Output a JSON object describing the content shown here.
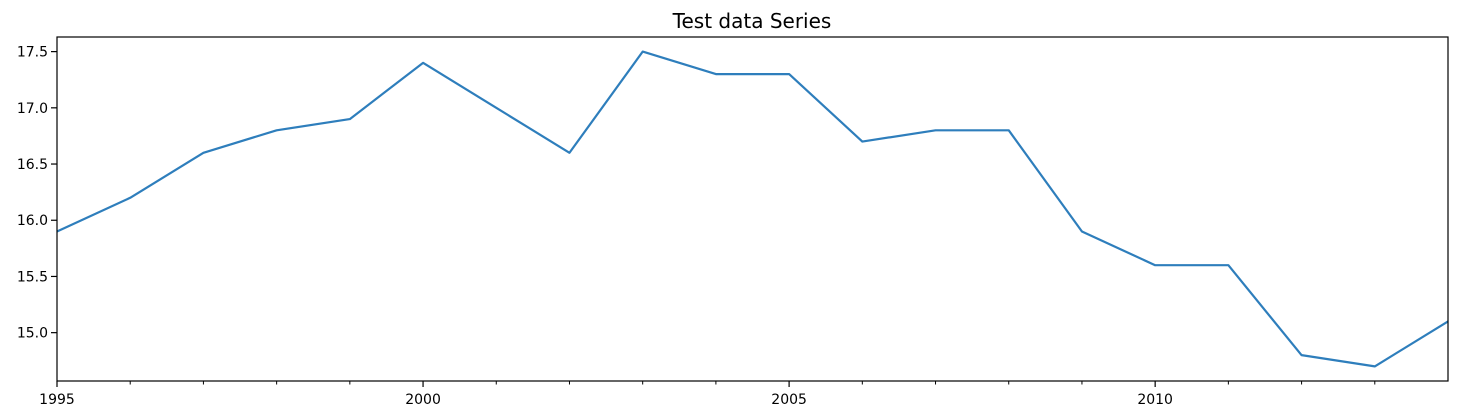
{
  "chart_data": {
    "type": "line",
    "title": "Test data Series",
    "xlabel": "",
    "ylabel": "",
    "x": [
      1995,
      1996,
      1997,
      1998,
      1999,
      2000,
      2001,
      2002,
      2003,
      2004,
      2005,
      2006,
      2007,
      2008,
      2009,
      2010,
      2011,
      2012,
      2013,
      2014
    ],
    "series": [
      {
        "values": [
          15.9,
          16.2,
          16.6,
          16.8,
          16.9,
          17.4,
          17.0,
          16.6,
          17.5,
          17.3,
          17.3,
          16.7,
          16.8,
          16.8,
          15.9,
          15.6,
          15.6,
          14.8,
          14.7,
          15.1
        ]
      }
    ],
    "xlim": [
      1995,
      2014
    ],
    "ylim": [
      14.57,
      17.63
    ],
    "x_major_ticks": [
      {
        "value": 1995,
        "label": "1995"
      },
      {
        "value": 2000,
        "label": "2000"
      },
      {
        "value": 2005,
        "label": "2005"
      },
      {
        "value": 2010,
        "label": "2010"
      }
    ],
    "x_minor_ticks": [
      1996,
      1997,
      1998,
      1999,
      2001,
      2002,
      2003,
      2004,
      2006,
      2007,
      2008,
      2009,
      2011,
      2012,
      2013
    ],
    "y_ticks": [
      {
        "value": 15.0,
        "label": "15.0"
      },
      {
        "value": 15.5,
        "label": "15.5"
      },
      {
        "value": 16.0,
        "label": "16.0"
      },
      {
        "value": 16.5,
        "label": "16.5"
      },
      {
        "value": 17.0,
        "label": "17.0"
      },
      {
        "value": 17.5,
        "label": "17.5"
      }
    ],
    "grid": false,
    "colors": {
      "line": "#2e7ebc",
      "axis": "#000000"
    }
  }
}
